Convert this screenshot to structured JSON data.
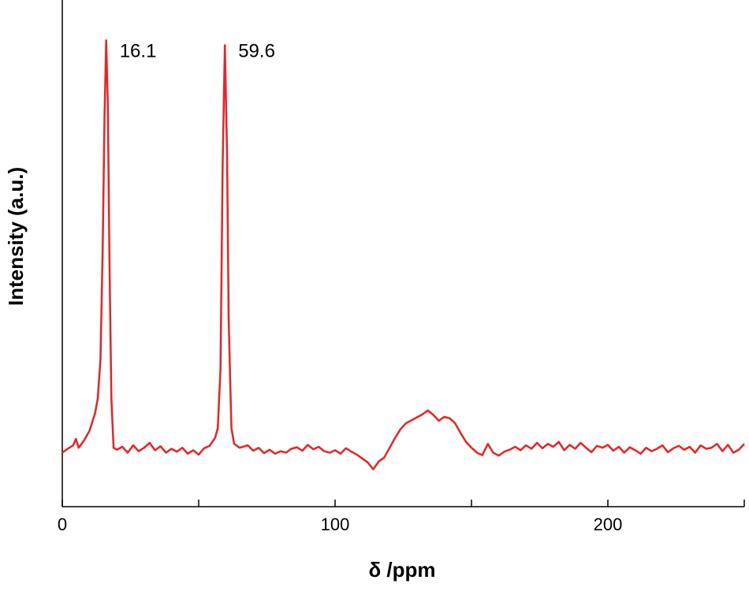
{
  "chart_data": {
    "type": "line",
    "xlabel": "δ /ppm",
    "ylabel": "Intensity (a.u.)",
    "xlim": [
      0,
      250
    ],
    "ylim": [
      0,
      100
    ],
    "xticks": [
      0,
      100,
      200
    ],
    "xminor_ticks": [
      50,
      150,
      250
    ],
    "annotations": [
      {
        "text": "16.1",
        "x": 16.1
      },
      {
        "text": "59.6",
        "x": 59.6
      }
    ],
    "series": [
      {
        "color": "#ee2222",
        "x": [
          0,
          2,
          4,
          5,
          6,
          8,
          10,
          12,
          13,
          14,
          14.8,
          15.5,
          16.1,
          16.7,
          17.3,
          18,
          18.8,
          20,
          22,
          24,
          26,
          28,
          30,
          32,
          34,
          36,
          38,
          40,
          42,
          44,
          46,
          48,
          50,
          52,
          54,
          56,
          57,
          58,
          58.8,
          59.6,
          60.4,
          61,
          62,
          63,
          65,
          68,
          70,
          72,
          74,
          76,
          78,
          80,
          82,
          84,
          86,
          88,
          90,
          92,
          94,
          96,
          98,
          100,
          102,
          104,
          106,
          108,
          110,
          112,
          114,
          116,
          118,
          120,
          122,
          124,
          126,
          128,
          130,
          132,
          134,
          136,
          138,
          140,
          142,
          144,
          146,
          148,
          150,
          152,
          154,
          156,
          158,
          160,
          162,
          164,
          166,
          168,
          170,
          172,
          174,
          176,
          178,
          180,
          182,
          184,
          186,
          188,
          190,
          192,
          194,
          196,
          198,
          200,
          202,
          204,
          206,
          208,
          210,
          212,
          214,
          216,
          218,
          220,
          222,
          224,
          226,
          228,
          230,
          232,
          234,
          236,
          238,
          240,
          242,
          244,
          246,
          248,
          250
        ],
        "values": [
          11.0,
          11.8,
          12.5,
          13.8,
          12.0,
          13.5,
          15.5,
          19,
          22,
          30,
          52,
          80,
          95,
          82,
          50,
          22,
          12,
          11.6,
          12.2,
          11.0,
          12.5,
          11.3,
          12.0,
          13.0,
          11.5,
          12.3,
          11.0,
          11.8,
          11.2,
          12.0,
          10.8,
          11.5,
          10.6,
          11.9,
          12.4,
          14.0,
          16,
          28,
          70,
          94,
          72,
          38,
          16,
          12.8,
          12.0,
          12.5,
          11.4,
          12.0,
          10.9,
          11.6,
          10.8,
          11.3,
          11.0,
          11.8,
          12.1,
          11.4,
          12.6,
          11.7,
          12.2,
          11.3,
          11.0,
          11.5,
          10.8,
          11.9,
          11.2,
          10.6,
          9.8,
          9.0,
          7.6,
          9.2,
          10.0,
          12.0,
          14.0,
          15.8,
          17.0,
          17.6,
          18.2,
          18.8,
          19.6,
          18.7,
          17.5,
          18.3,
          18.0,
          17.0,
          15.0,
          13.2,
          12.0,
          11.0,
          10.5,
          12.8,
          11.0,
          10.4,
          11.2,
          11.6,
          12.2,
          11.5,
          12.5,
          11.8,
          13.0,
          11.9,
          12.8,
          12.2,
          13.2,
          11.5,
          12.6,
          11.8,
          13.0,
          12.0,
          11.1,
          12.4,
          12.0,
          12.6,
          11.4,
          12.2,
          11.0,
          12.1,
          11.5,
          10.8,
          12.0,
          11.3,
          11.8,
          12.5,
          11.1,
          11.9,
          12.4,
          11.6,
          12.2,
          11.0,
          12.5,
          11.8,
          12.0,
          12.8,
          11.3,
          12.6,
          11.0,
          11.6,
          12.8
        ]
      }
    ]
  }
}
